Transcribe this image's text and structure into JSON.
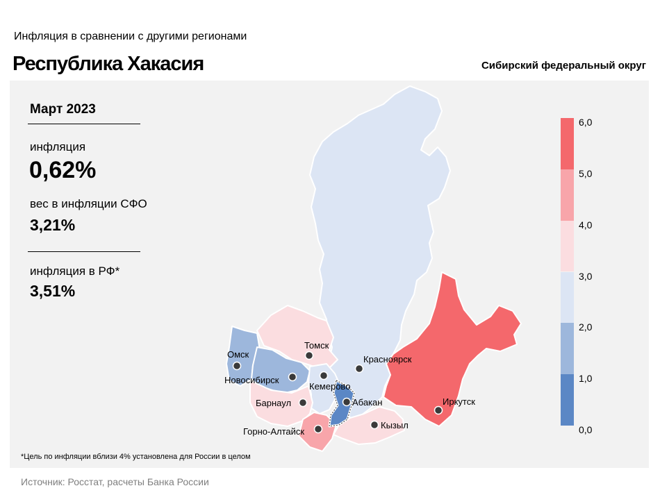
{
  "header": {
    "subtitle": "Инфляция  в сравнении  с другими  регионами",
    "title": "Республика Хакасия",
    "district": "Сибирский федеральный округ"
  },
  "info": {
    "period": "Март 2023",
    "inflation_label": "инфляция",
    "inflation_value": "0,62%",
    "weight_label": "вес в инфляции  СФО",
    "weight_value": "3,21%",
    "rf_label": "инфляция  в РФ*",
    "rf_value": "3,51%"
  },
  "footnote": "*Цель по инфляции вблизи 4% установлена для России в целом",
  "source": "Источник: Росстат, расчеты Банка России",
  "scale": {
    "labels": [
      "6,0",
      "5,0",
      "4,0",
      "3,0",
      "2,0",
      "1,0",
      "0,0"
    ],
    "bins": [
      {
        "from": 0,
        "to": 1,
        "color": "#5b87c5"
      },
      {
        "from": 1,
        "to": 2,
        "color": "#9db7dc"
      },
      {
        "from": 2,
        "to": 3,
        "color": "#dce5f4"
      },
      {
        "from": 3,
        "to": 4,
        "color": "#fbdde0"
      },
      {
        "from": 4,
        "to": 5,
        "color": "#f8a5aa"
      },
      {
        "from": 5,
        "to": 6,
        "color": "#f4686c"
      }
    ]
  },
  "cities": {
    "tomsk": "Томск",
    "krasnoyarsk": "Красноярск",
    "omsk": "Омск",
    "novosibirsk": "Новосибирск",
    "kemerovo": "Кемерово",
    "barnaul": "Барнаул",
    "abakan": "Абакан",
    "irkutsk": "Иркутск",
    "kyzyl": "Кызыл",
    "gorno_altaysk": "Горно-Алтайск"
  },
  "colors": {
    "krasnoyarsk_region": "#dce5f4",
    "irkutsk_region": "#f4686c",
    "tomsk_region": "#fbdde0",
    "omsk_region": "#9db7dc",
    "novosibirsk_region": "#9db7dc",
    "kemerovo_region": "#dce5f4",
    "altai_krai": "#fbdde0",
    "altai_republic": "#f8a5aa",
    "tuva": "#fbdde0",
    "khakassia": "#5b87c5"
  }
}
